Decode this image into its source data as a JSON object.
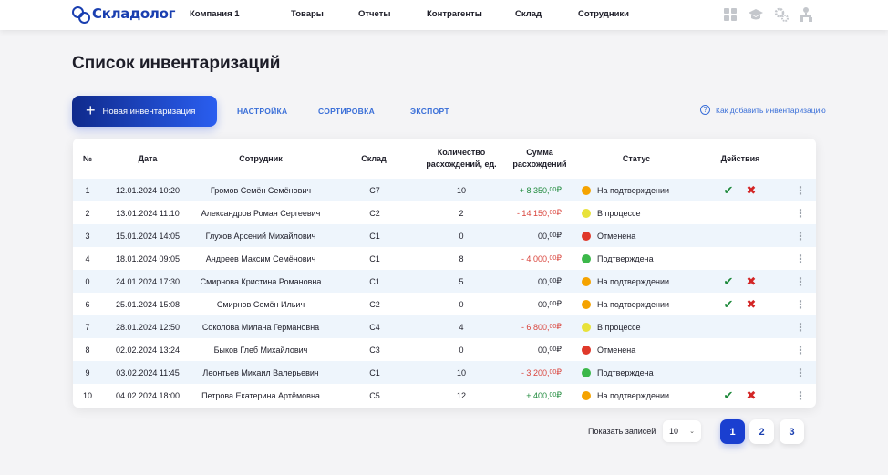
{
  "header": {
    "logo_text": "Складолог",
    "nav": [
      "Компания 1",
      "Товары",
      "Отчеты",
      "Контрагенты",
      "Склад",
      "Сотрудники"
    ],
    "icons": [
      "grid-icon",
      "graduation-cap-icon",
      "settings-icon",
      "user-tree-icon"
    ]
  },
  "page": {
    "title": "Список инвентаризаций"
  },
  "toolbar": {
    "new_label": "Новая инвентаризация",
    "settings_label": "НАСТРОЙКА",
    "sort_label": "СОРТИРОВКА",
    "export_label": "ЭКСПОРТ",
    "help_label": "Как добавить инвентаризацию"
  },
  "table": {
    "headers": {
      "num": "№",
      "date": "Дата",
      "employee": "Сотрудник",
      "warehouse": "Склад",
      "count_l1": "Количество",
      "count_l2": "расхождений, ед.",
      "sum_l1": "Сумма",
      "sum_l2": "расхождений",
      "status": "Статус",
      "actions": "Действия"
    },
    "rows": [
      {
        "num": "1",
        "date": "12.01.2024 10:20",
        "employee": "Громов Семён Семёнович",
        "warehouse": "С7",
        "count": "10",
        "sum_int": "+ 8 350,",
        "sum_frac": "00",
        "sum_cur": " ₽",
        "sum_kind": "pos",
        "status": "На подтверждении",
        "status_kind": "pending",
        "actions": true
      },
      {
        "num": "2",
        "date": "13.01.2024 11:10",
        "employee": "Александров Роман Сергеевич",
        "warehouse": "С2",
        "count": "2",
        "sum_int": "- 14 150,",
        "sum_frac": "00",
        "sum_cur": " ₽",
        "sum_kind": "neg",
        "status": "В процессе",
        "status_kind": "progress",
        "actions": false
      },
      {
        "num": "3",
        "date": "15.01.2024 14:05",
        "employee": "Глухов Арсений Михайлович",
        "warehouse": "С1",
        "count": "0",
        "sum_int": "00,",
        "sum_frac": "00",
        "sum_cur": " ₽",
        "sum_kind": "zero",
        "status": "Отменена",
        "status_kind": "cancelled",
        "actions": false
      },
      {
        "num": "4",
        "date": "18.01.2024 09:05",
        "employee": "Андреев Максим Семёнович",
        "warehouse": "С1",
        "count": "8",
        "sum_int": "- 4 000,",
        "sum_frac": "00",
        "sum_cur": " ₽",
        "sum_kind": "neg",
        "status": "Подтверждена",
        "status_kind": "confirmed",
        "actions": false
      },
      {
        "num": "0",
        "date": "24.01.2024 17:30",
        "employee": "Смирнова Кристина Романовна",
        "warehouse": "С1",
        "count": "5",
        "sum_int": "00,",
        "sum_frac": "00",
        "sum_cur": " ₽",
        "sum_kind": "zero",
        "status": "На подтверждении",
        "status_kind": "pending",
        "actions": true
      },
      {
        "num": "6",
        "date": "25.01.2024 15:08",
        "employee": "Смирнов Семён Ильич",
        "warehouse": "С2",
        "count": "0",
        "sum_int": "00,",
        "sum_frac": "00",
        "sum_cur": " ₽",
        "sum_kind": "zero",
        "status": "На подтверждении",
        "status_kind": "pending",
        "actions": true
      },
      {
        "num": "7",
        "date": "28.01.2024 12:50",
        "employee": "Соколова Милана Германовна",
        "warehouse": "С4",
        "count": "4",
        "sum_int": "- 6 800,",
        "sum_frac": "00",
        "sum_cur": " ₽",
        "sum_kind": "neg",
        "status": "В процессе",
        "status_kind": "progress",
        "actions": false
      },
      {
        "num": "8",
        "date": "02.02.2024 13:24",
        "employee": "Быков Глеб Михайлович",
        "warehouse": "С3",
        "count": "0",
        "sum_int": "00,",
        "sum_frac": "00",
        "sum_cur": " ₽",
        "sum_kind": "zero",
        "status": "Отменена",
        "status_kind": "cancelled",
        "actions": false
      },
      {
        "num": "9",
        "date": "03.02.2024 11:45",
        "employee": "Леонтьев Михаил Валерьевич",
        "warehouse": "С1",
        "count": "10",
        "sum_int": "- 3 200,",
        "sum_frac": "00",
        "sum_cur": " ₽",
        "sum_kind": "neg",
        "status": "Подтверждена",
        "status_kind": "confirmed",
        "actions": false
      },
      {
        "num": "10",
        "date": "04.02.2024 18:00",
        "employee": "Петрова Екатерина Артёмовна",
        "warehouse": "С5",
        "count": "12",
        "sum_int": "+ 400,",
        "sum_frac": "00",
        "sum_cur": " ₽",
        "sum_kind": "pos",
        "status": "На подтверждении",
        "status_kind": "pending",
        "actions": true
      }
    ]
  },
  "colors": {
    "accent": "#1a3fd0",
    "positive": "#1f8a3c",
    "negative": "#d9443c",
    "status_pending": "#f5a300",
    "status_progress": "#e8e23a",
    "status_cancelled": "#e0392b",
    "status_confirmed": "#3cb84a"
  },
  "pagination": {
    "show_label": "Показать записей",
    "per_page": "10",
    "pages": [
      "1",
      "2",
      "3"
    ],
    "current": "1"
  }
}
